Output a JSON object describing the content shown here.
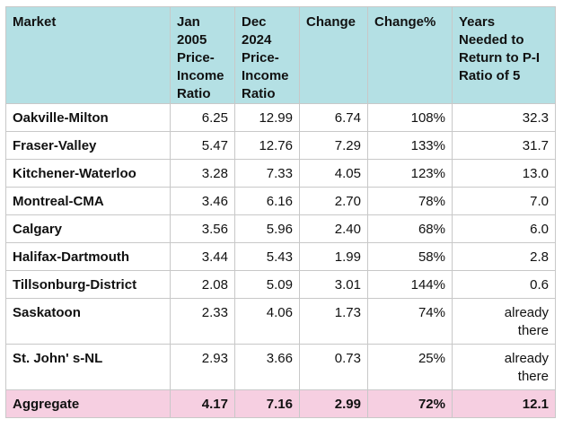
{
  "headers": [
    "Market",
    "Jan\n2005\nPrice-\nIncome\nRatio",
    "Dec\n2024\nPrice-\nIncome\nRatio",
    "Change",
    "Change%",
    "Years\nNeeded to\nReturn to P-I\nRatio of 5"
  ],
  "rows": [
    {
      "market": "Oakville-Milton",
      "jan2005": "6.25",
      "dec2024": "12.99",
      "change": "6.74",
      "change_pct": "108%",
      "years": "32.3"
    },
    {
      "market": "Fraser-Valley",
      "jan2005": "5.47",
      "dec2024": "12.76",
      "change": "7.29",
      "change_pct": "133%",
      "years": "31.7"
    },
    {
      "market": "Kitchener-Waterloo",
      "jan2005": "3.28",
      "dec2024": "7.33",
      "change": "4.05",
      "change_pct": "123%",
      "years": "13.0"
    },
    {
      "market": "Montreal-CMA",
      "jan2005": "3.46",
      "dec2024": "6.16",
      "change": "2.70",
      "change_pct": "78%",
      "years": "7.0"
    },
    {
      "market": "Calgary",
      "jan2005": "3.56",
      "dec2024": "5.96",
      "change": "2.40",
      "change_pct": "68%",
      "years": "6.0"
    },
    {
      "market": "Halifax-Dartmouth",
      "jan2005": "3.44",
      "dec2024": "5.43",
      "change": "1.99",
      "change_pct": "58%",
      "years": "2.8"
    },
    {
      "market": "Tillsonburg-District",
      "jan2005": "2.08",
      "dec2024": "5.09",
      "change": "3.01",
      "change_pct": "144%",
      "years": "0.6"
    },
    {
      "market": "Saskatoon",
      "jan2005": "2.33",
      "dec2024": "4.06",
      "change": "1.73",
      "change_pct": "74%",
      "years": "already\nthere"
    },
    {
      "market": "St. John' s-NL",
      "jan2005": "2.93",
      "dec2024": "3.66",
      "change": "0.73",
      "change_pct": "25%",
      "years": "already\nthere"
    }
  ],
  "aggregate": {
    "market": "Aggregate",
    "jan2005": "4.17",
    "dec2024": "7.16",
    "change": "2.99",
    "change_pct": "72%",
    "years": "12.1"
  },
  "colors": {
    "header_bg": "#b4e0e4",
    "aggregate_bg": "#f6cfe1",
    "border": "#c8c8c8"
  }
}
